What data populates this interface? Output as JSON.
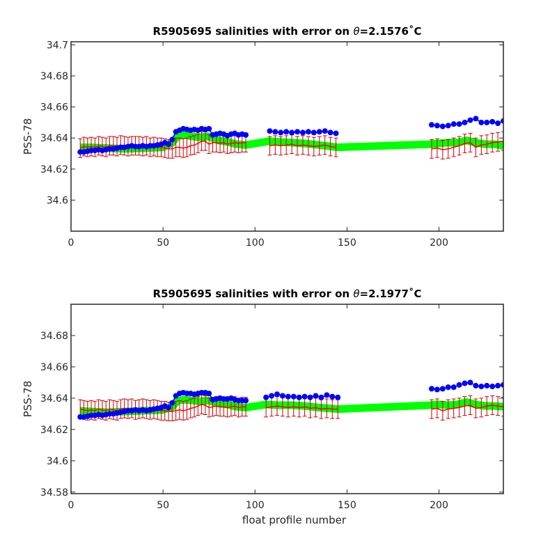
{
  "chart_data": [
    {
      "type": "scatter",
      "title_prefix": "R5905695 salinities with error on ",
      "title_symbol": "θ",
      "title_value": "=2.1576",
      "title_unit": "˚C",
      "xlabel": "",
      "ylabel": "PSS-78",
      "xlim": [
        0,
        235
      ],
      "ylim": [
        34.58,
        34.702
      ],
      "xticks": [
        0,
        50,
        100,
        150,
        200
      ],
      "xtick_labels": [
        "0",
        "50",
        "100",
        "150",
        "200"
      ],
      "yticks": [
        34.6,
        34.62,
        34.64,
        34.66,
        34.68,
        34.7
      ],
      "ytick_labels": [
        "34.6",
        "34.62",
        "34.64",
        "34.66",
        "34.68",
        "34.7"
      ],
      "grid": false,
      "colors": {
        "raw": "#0000ff",
        "calibrated": "#ff0000",
        "error": "#cc0000",
        "mapped": "#00ff00"
      },
      "series": [
        {
          "key": "raw",
          "x": [
            5,
            7,
            9,
            11,
            13,
            15,
            17,
            19,
            21,
            23,
            25,
            27,
            29,
            31,
            33,
            35,
            37,
            39,
            41,
            43,
            45,
            47,
            49,
            51,
            53,
            55,
            57,
            59,
            61,
            63,
            65,
            67,
            69,
            71,
            73,
            75,
            77,
            79,
            81,
            83,
            85,
            87,
            89,
            91,
            93,
            95,
            108,
            111,
            114,
            117,
            120,
            123,
            126,
            129,
            132,
            135,
            138,
            141,
            144,
            196,
            199,
            202,
            205,
            208,
            211,
            214,
            217,
            220,
            223,
            226,
            229,
            232,
            235
          ],
          "y": [
            34.631,
            34.631,
            34.6315,
            34.632,
            34.632,
            34.6325,
            34.632,
            34.6325,
            34.633,
            34.633,
            34.6335,
            34.634,
            34.634,
            34.6345,
            34.635,
            34.6345,
            34.6345,
            34.635,
            34.6345,
            34.635,
            34.635,
            34.6355,
            34.636,
            34.637,
            34.636,
            34.639,
            34.644,
            34.645,
            34.646,
            34.6455,
            34.645,
            34.6455,
            34.645,
            34.646,
            34.6455,
            34.646,
            34.642,
            34.6425,
            34.643,
            34.6425,
            34.6415,
            34.6425,
            34.643,
            34.642,
            34.6425,
            34.642,
            34.6445,
            34.644,
            34.6435,
            34.644,
            34.6435,
            34.644,
            34.6435,
            34.644,
            34.6435,
            34.644,
            34.6445,
            34.6435,
            34.643,
            34.6485,
            34.648,
            34.6475,
            34.648,
            34.649,
            34.649,
            34.65,
            34.6515,
            34.6525,
            34.65,
            34.65,
            34.6505,
            34.6495,
            34.651
          ]
        },
        {
          "key": "calibrated",
          "x": [
            5,
            7,
            9,
            11,
            13,
            15,
            17,
            19,
            21,
            23,
            25,
            27,
            29,
            31,
            33,
            35,
            37,
            39,
            41,
            43,
            45,
            47,
            49,
            51,
            53,
            55,
            57,
            59,
            61,
            63,
            65,
            67,
            69,
            71,
            73,
            75,
            77,
            79,
            81,
            83,
            85,
            87,
            89,
            91,
            93,
            95,
            108,
            111,
            114,
            117,
            120,
            123,
            126,
            129,
            132,
            135,
            138,
            141,
            144,
            196,
            199,
            202,
            205,
            208,
            211,
            214,
            217,
            220,
            223,
            226,
            229,
            232,
            235
          ],
          "y": [
            34.6335,
            34.6345,
            34.634,
            34.6345,
            34.634,
            34.635,
            34.6345,
            34.634,
            34.635,
            34.635,
            34.6345,
            34.6355,
            34.635,
            34.6345,
            34.635,
            34.635,
            34.635,
            34.6345,
            34.635,
            34.634,
            34.6345,
            34.634,
            34.634,
            34.6335,
            34.633,
            34.633,
            34.634,
            34.634,
            34.6335,
            34.634,
            34.635,
            34.6355,
            34.6365,
            34.638,
            34.638,
            34.636,
            34.637,
            34.637,
            34.6365,
            34.637,
            34.636,
            34.6365,
            34.637,
            34.6365,
            34.637,
            34.637,
            34.635,
            34.6355,
            34.635,
            34.6355,
            34.636,
            34.635,
            34.6355,
            34.635,
            34.6345,
            34.635,
            34.6355,
            34.6345,
            34.634,
            34.633,
            34.6335,
            34.6325,
            34.633,
            34.634,
            34.635,
            34.6365,
            34.637,
            34.634,
            34.6355,
            34.636,
            34.637,
            34.6375,
            34.638
          ],
          "err": 0.006
        },
        {
          "key": "mapped",
          "x": [
            5,
            10,
            20,
            30,
            40,
            50,
            55,
            58,
            62,
            66,
            70,
            75,
            80,
            85,
            90,
            95,
            108,
            113,
            120,
            127,
            135,
            145,
            195,
            200,
            205,
            210,
            215,
            220,
            225,
            230,
            235
          ],
          "y": [
            34.634,
            34.634,
            34.6335,
            34.633,
            34.6335,
            34.634,
            34.637,
            34.6415,
            34.642,
            34.641,
            34.6405,
            34.641,
            34.6385,
            34.6375,
            34.636,
            34.6355,
            34.638,
            34.6375,
            34.637,
            34.6365,
            34.6355,
            34.634,
            34.636,
            34.6365,
            34.637,
            34.637,
            34.6385,
            34.637,
            34.636,
            34.636,
            34.635
          ]
        }
      ]
    },
    {
      "type": "scatter",
      "title_prefix": "R5905695 salinities with error on ",
      "title_symbol": "θ",
      "title_value": "=2.1977",
      "title_unit": "˚C",
      "xlabel": "float profile number",
      "ylabel": "PSS-78",
      "xlim": [
        0,
        235
      ],
      "ylim": [
        34.579,
        34.7
      ],
      "xticks": [
        0,
        50,
        100,
        150,
        200
      ],
      "xtick_labels": [
        "0",
        "50",
        "100",
        "150",
        "200"
      ],
      "yticks": [
        34.58,
        34.6,
        34.62,
        34.64,
        34.66,
        34.68
      ],
      "ytick_labels": [
        "34.58",
        "34.6",
        "34.62",
        "34.64",
        "34.66",
        "34.68"
      ],
      "grid": false,
      "colors": {
        "raw": "#0000ff",
        "calibrated": "#ff0000",
        "error": "#cc0000",
        "mapped": "#00ff00"
      },
      "series": [
        {
          "key": "raw",
          "x": [
            5,
            7,
            9,
            11,
            13,
            15,
            17,
            19,
            21,
            23,
            25,
            27,
            29,
            31,
            33,
            35,
            37,
            39,
            41,
            43,
            45,
            47,
            49,
            51,
            53,
            55,
            57,
            59,
            61,
            63,
            65,
            67,
            69,
            71,
            73,
            75,
            77,
            79,
            81,
            83,
            85,
            87,
            89,
            91,
            93,
            95,
            106,
            109,
            112,
            115,
            118,
            121,
            124,
            127,
            130,
            133,
            136,
            139,
            142,
            145,
            196,
            199,
            202,
            205,
            208,
            211,
            214,
            217,
            220,
            223,
            226,
            229,
            232,
            235
          ],
          "y": [
            34.628,
            34.628,
            34.6285,
            34.629,
            34.629,
            34.6295,
            34.629,
            34.6295,
            34.63,
            34.63,
            34.6305,
            34.631,
            34.6315,
            34.632,
            34.632,
            34.6325,
            34.632,
            34.6325,
            34.632,
            34.6325,
            34.633,
            34.6335,
            34.634,
            34.635,
            34.634,
            34.637,
            34.6415,
            34.643,
            34.6435,
            34.643,
            34.643,
            34.6425,
            34.643,
            34.6435,
            34.6435,
            34.643,
            34.639,
            34.6395,
            34.64,
            34.6395,
            34.6395,
            34.64,
            34.639,
            34.6385,
            34.6385,
            34.6385,
            34.6405,
            34.6415,
            34.6425,
            34.6415,
            34.641,
            34.641,
            34.6405,
            34.641,
            34.6405,
            34.6415,
            34.6405,
            34.642,
            34.641,
            34.6405,
            34.646,
            34.6455,
            34.646,
            34.647,
            34.647,
            34.6485,
            34.6495,
            34.65,
            34.648,
            34.6475,
            34.648,
            34.6475,
            34.648,
            34.6485
          ]
        },
        {
          "key": "calibrated",
          "x": [
            5,
            7,
            9,
            11,
            13,
            15,
            17,
            19,
            21,
            23,
            25,
            27,
            29,
            31,
            33,
            35,
            37,
            39,
            41,
            43,
            45,
            47,
            49,
            51,
            53,
            55,
            57,
            59,
            61,
            63,
            65,
            67,
            69,
            71,
            73,
            75,
            77,
            79,
            81,
            83,
            85,
            87,
            89,
            91,
            93,
            95,
            106,
            109,
            112,
            115,
            118,
            121,
            124,
            127,
            130,
            133,
            136,
            139,
            142,
            145,
            196,
            199,
            202,
            205,
            208,
            211,
            214,
            217,
            220,
            223,
            226,
            229,
            232,
            235
          ],
          "y": [
            34.633,
            34.6325,
            34.632,
            34.6325,
            34.632,
            34.633,
            34.6325,
            34.632,
            34.633,
            34.6325,
            34.632,
            34.633,
            34.6335,
            34.633,
            34.6335,
            34.6325,
            34.633,
            34.6335,
            34.633,
            34.6325,
            34.633,
            34.6325,
            34.632,
            34.632,
            34.6315,
            34.6315,
            34.632,
            34.6325,
            34.632,
            34.6325,
            34.6335,
            34.634,
            34.635,
            34.636,
            34.6355,
            34.634,
            34.6345,
            34.635,
            34.6345,
            34.6345,
            34.634,
            34.6345,
            34.635,
            34.634,
            34.6345,
            34.6345,
            34.634,
            34.6345,
            34.635,
            34.6345,
            34.634,
            34.6345,
            34.634,
            34.6345,
            34.6335,
            34.634,
            34.633,
            34.6335,
            34.633,
            34.633,
            34.633,
            34.6335,
            34.632,
            34.633,
            34.6335,
            34.634,
            34.635,
            34.6355,
            34.6335,
            34.634,
            34.635,
            34.6355,
            34.635,
            34.6345
          ],
          "err": 0.006
        },
        {
          "key": "mapped",
          "x": [
            5,
            10,
            20,
            30,
            40,
            50,
            55,
            58,
            62,
            66,
            70,
            75,
            80,
            85,
            90,
            95,
            106,
            112,
            120,
            127,
            135,
            145,
            195,
            200,
            205,
            210,
            215,
            220,
            225,
            230,
            235
          ],
          "y": [
            34.632,
            34.6315,
            34.631,
            34.6315,
            34.632,
            34.6325,
            34.6345,
            34.6385,
            34.639,
            34.6385,
            34.638,
            34.6385,
            34.6365,
            34.636,
            34.6345,
            34.634,
            34.636,
            34.6355,
            34.6355,
            34.635,
            34.634,
            34.633,
            34.6355,
            34.636,
            34.6355,
            34.636,
            34.6375,
            34.636,
            34.635,
            34.635,
            34.6345
          ]
        }
      ]
    }
  ]
}
